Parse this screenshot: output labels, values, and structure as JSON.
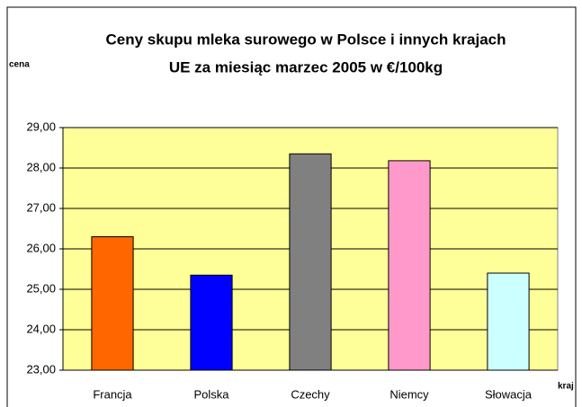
{
  "chart_data": {
    "type": "bar",
    "title": [
      "Ceny skupu mleka surowego w Polsce i innych krajach",
      "UE za miesiąc marzec 2005 w €/100kg"
    ],
    "y_label": "cena",
    "x_label": "kraj",
    "categories": [
      "Francja",
      "Polska",
      "Czechy",
      "Niemcy",
      "Słowacja"
    ],
    "values": [
      26.3,
      25.35,
      28.35,
      28.18,
      25.4
    ],
    "colors": [
      "#ff6600",
      "#0000ff",
      "#808080",
      "#ff99cc",
      "#ccffff"
    ],
    "ylim": [
      23,
      29
    ],
    "yticks": [
      {
        "value": 23,
        "label": "23,00"
      },
      {
        "value": 24,
        "label": "24,00"
      },
      {
        "value": 25,
        "label": "25,00"
      },
      {
        "value": 26,
        "label": "26,00"
      },
      {
        "value": 27,
        "label": "27,00"
      },
      {
        "value": 28,
        "label": "28,00"
      },
      {
        "value": 29,
        "label": "29,00"
      }
    ],
    "grid": true,
    "plot_background": "#ffff99"
  }
}
